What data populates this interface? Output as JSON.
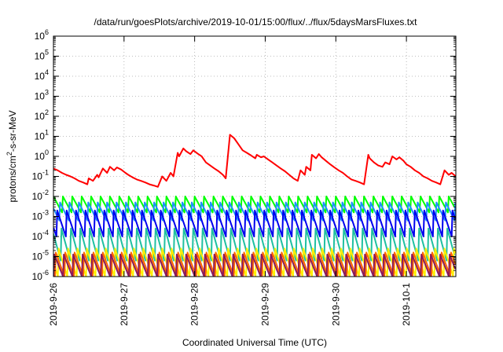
{
  "chart_data": {
    "type": "line",
    "title": "/data/run/goesPlots/archive/2019-10-01/15:00/flux/../flux/5daysMarsFluxes.txt",
    "xlabel": "Coordinated Universal Time (UTC)",
    "ylabel": {
      "prefix": "protons/cm",
      "sup": "2",
      "suffix": "-s-sr-MeV"
    },
    "ylog": true,
    "ylim_exp": [
      -6,
      6
    ],
    "xlim_days": [
      0,
      5.7
    ],
    "grid": true,
    "legend": "none",
    "x_ticks": [
      {
        "label": "2019-9-26",
        "day": 0
      },
      {
        "label": "2019-9-27",
        "day": 1
      },
      {
        "label": "2019-9-28",
        "day": 2
      },
      {
        "label": "2019-9-29",
        "day": 3
      },
      {
        "label": "2019-9-30",
        "day": 4
      },
      {
        "label": "2019-10-1",
        "day": 5
      }
    ],
    "y_ticks": [
      {
        "base": "10",
        "exp": "6"
      },
      {
        "base": "10",
        "exp": "5"
      },
      {
        "base": "10",
        "exp": "4"
      },
      {
        "base": "10",
        "exp": "3"
      },
      {
        "base": "10",
        "exp": "2"
      },
      {
        "base": "10",
        "exp": "1"
      },
      {
        "base": "10",
        "exp": "0"
      },
      {
        "base": "10",
        "exp": "-1"
      },
      {
        "base": "10",
        "exp": "-2"
      },
      {
        "base": "10",
        "exp": "-3"
      },
      {
        "base": "10",
        "exp": "-4"
      },
      {
        "base": "10",
        "exp": "-5"
      },
      {
        "base": "10",
        "exp": "-6"
      }
    ],
    "series": [
      {
        "color": "#ff0000",
        "x": [
          0.0,
          0.06,
          0.12,
          0.18,
          0.24,
          0.3,
          0.36,
          0.42,
          0.48,
          0.5,
          0.56,
          0.62,
          0.64,
          0.7,
          0.76,
          0.8,
          0.86,
          0.9,
          0.96,
          1.02,
          1.06,
          1.12,
          1.18,
          1.24,
          1.3,
          1.36,
          1.42,
          1.48,
          1.54,
          1.6,
          1.66,
          1.7,
          1.76,
          1.78,
          1.84,
          1.88,
          1.94,
          1.98,
          2.04,
          2.1,
          2.16,
          2.22,
          2.28,
          2.34,
          2.4,
          2.44,
          2.5,
          2.56,
          2.62,
          2.68,
          2.74,
          2.8,
          2.86,
          2.88,
          2.94,
          2.98,
          3.04,
          3.1,
          3.16,
          3.22,
          3.28,
          3.34,
          3.4,
          3.46,
          3.5,
          3.56,
          3.58,
          3.64,
          3.66,
          3.72,
          3.76,
          3.8,
          3.86,
          3.92,
          3.98,
          4.04,
          4.1,
          4.16,
          4.22,
          4.28,
          4.34,
          4.4,
          4.46,
          4.48,
          4.54,
          4.6,
          4.66,
          4.7,
          4.76,
          4.8,
          4.86,
          4.9,
          4.96,
          5.0,
          5.06,
          5.12,
          5.18,
          5.24,
          5.3,
          5.36,
          5.42,
          5.48,
          5.54,
          5.6,
          5.64,
          5.7
        ],
        "y": [
          0.25,
          0.2,
          0.15,
          0.12,
          0.1,
          0.08,
          0.06,
          0.05,
          0.04,
          0.08,
          0.06,
          0.12,
          0.09,
          0.25,
          0.15,
          0.3,
          0.2,
          0.28,
          0.22,
          0.15,
          0.12,
          0.09,
          0.07,
          0.06,
          0.05,
          0.04,
          0.035,
          0.03,
          0.1,
          0.06,
          0.15,
          0.1,
          1.5,
          1.0,
          2.5,
          1.8,
          1.3,
          2.0,
          1.4,
          1.0,
          0.5,
          0.35,
          0.25,
          0.18,
          0.12,
          0.08,
          12,
          8,
          4,
          2,
          1.5,
          1.1,
          0.8,
          1.2,
          0.9,
          1.0,
          0.7,
          0.5,
          0.35,
          0.25,
          0.18,
          0.12,
          0.08,
          0.06,
          0.2,
          0.12,
          0.3,
          0.2,
          1.2,
          0.8,
          1.3,
          0.9,
          0.6,
          0.4,
          0.28,
          0.2,
          0.15,
          0.1,
          0.07,
          0.06,
          0.05,
          0.04,
          1.2,
          0.8,
          0.5,
          0.35,
          0.3,
          0.5,
          0.4,
          1.0,
          0.7,
          0.9,
          0.6,
          0.4,
          0.3,
          0.2,
          0.15,
          0.1,
          0.08,
          0.06,
          0.05,
          0.04,
          0.2,
          0.12,
          0.15,
          0.1
        ]
      },
      {
        "color": "#00ff00",
        "shape": "sawtooth",
        "top": -2.0,
        "bottom": -2.8,
        "phase": 0.0
      },
      {
        "color": "#1e90ff",
        "shape": "sawtooth",
        "top": -2.3,
        "bottom": -3.2,
        "phase": 0.04
      },
      {
        "color": "#0000ee",
        "shape": "sawtooth",
        "top": -2.7,
        "bottom": -4.0,
        "phase": 0.08
      },
      {
        "color": "#20c0a0",
        "shape": "sawtooth",
        "top": -3.6,
        "bottom": -5.2,
        "phase": 0.02
      },
      {
        "color": "#ffee00",
        "shape": "sawtooth",
        "top": -4.6,
        "bottom": -6.0,
        "phase": 0.06
      },
      {
        "color": "#ff6600",
        "shape": "sawtooth",
        "top": -4.8,
        "bottom": -6.0,
        "phase": 0.1
      },
      {
        "color": "#8b1a5a",
        "shape": "sawtooth",
        "top": -4.9,
        "bottom": -6.0,
        "phase": 0.12
      }
    ]
  }
}
